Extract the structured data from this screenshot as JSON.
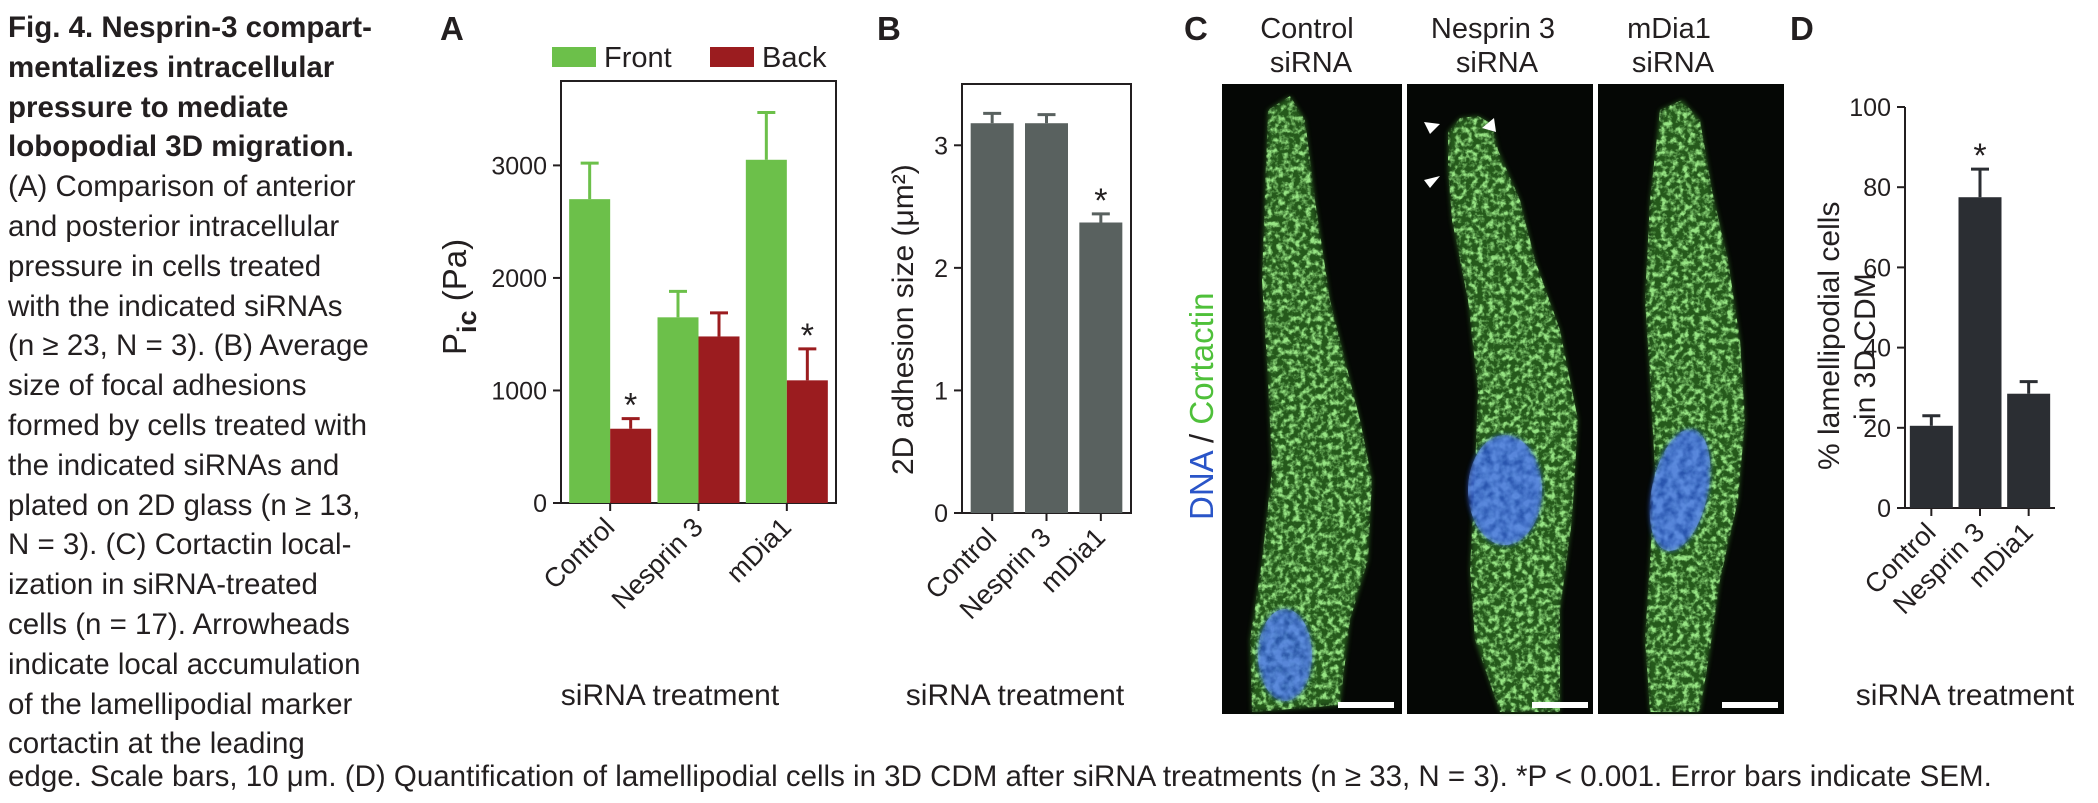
{
  "caption": {
    "title": "Fig. 4. Nesprin-3 compartmentalizes intracellular pressure to mediate lobopodial 3D migration.",
    "title_lines": [
      "Fig. 4. Nesprin-3 compart-",
      "mentalizes intracellular",
      "pressure to mediate",
      "lobopodial 3D migration."
    ],
    "body_lines": [
      "(A) Comparison of anterior",
      "and posterior intracellular",
      "pressure in cells treated",
      "with the indicated siRNAs",
      "(n ≥  23, N = 3). (B) Average",
      "size of focal adhesions",
      "formed by cells treated with",
      "the indicated siRNAs and",
      "plated on 2D glass (n ≥ 13,",
      "N = 3). (C) Cortactin local-",
      "ization in siRNA-treated",
      "cells (n = 17). Arrowheads",
      "indicate local accumulation",
      "of the lamellipodial marker",
      "cortactin at the leading"
    ],
    "bottom_line": "edge. Scale bars, 10 μm. (D) Quantification of lamellipodial cells in 3D CDM after siRNA treatments (n ≥ 33, N = 3). *P < 0.001. Error bars indicate SEM."
  },
  "panels": {
    "A": "A",
    "B": "B",
    "C": "C",
    "D": "D"
  },
  "chart_data": [
    {
      "panel": "A",
      "type": "bar",
      "categories": [
        "Control",
        "Nesprin 3",
        "mDia1"
      ],
      "series": [
        {
          "name": "Front",
          "color": "#6cc04a",
          "values": [
            2700,
            1650,
            3050
          ],
          "errors": [
            320,
            230,
            420
          ]
        },
        {
          "name": "Back",
          "color": "#9b1c1f",
          "values": [
            660,
            1480,
            1090
          ],
          "errors": [
            90,
            210,
            280
          ]
        }
      ],
      "significance": [
        {
          "category": "Control",
          "series": "Back",
          "label": "*"
        },
        {
          "category": "mDia1",
          "series": "Back",
          "label": "*"
        }
      ],
      "yticks": [
        0,
        1000,
        2000,
        3000
      ],
      "ylim": [
        0,
        3750
      ],
      "ylabel_main": "P",
      "ylabel_sub": "ic",
      "ylabel_unit": "(Pa)",
      "xlabel": "siRNA treatment",
      "legend": "top"
    },
    {
      "panel": "B",
      "type": "bar",
      "categories": [
        "Control",
        "Nesprin 3",
        "mDia1"
      ],
      "series": [
        {
          "color": "#59615f",
          "values": [
            3.18,
            3.18,
            2.37
          ],
          "errors": [
            0.08,
            0.07,
            0.07
          ]
        }
      ],
      "significance": [
        {
          "category": "mDia1",
          "label": "*"
        }
      ],
      "yticks": [
        0,
        1,
        2,
        3
      ],
      "ylim": [
        0,
        3.5
      ],
      "ylabel": "2D adhesion size (μm²)",
      "xlabel": "siRNA treatment"
    },
    {
      "panel": "D",
      "type": "bar",
      "categories": [
        "Control",
        "Nesprin 3",
        "mDia1"
      ],
      "series": [
        {
          "color": "#2b2e33",
          "values": [
            20.5,
            77.5,
            28.5
          ],
          "errors": [
            2.5,
            7,
            3
          ]
        }
      ],
      "significance": [
        {
          "category": "Nesprin 3",
          "label": "*"
        }
      ],
      "yticks": [
        0,
        20,
        40,
        60,
        80,
        100
      ],
      "ylim": [
        0,
        100
      ],
      "ylabel_lines": [
        "% lamellipodial cells",
        "in 3D CDM"
      ],
      "xlabel": "siRNA treatment"
    }
  ],
  "micrographs": {
    "stain_label_dna": "DNA",
    "stain_label_sep": " / ",
    "stain_label_cortactin": "Cortactin",
    "dna_color": "#2a55c8",
    "cortactin_color": "#4fc03a",
    "columns": [
      {
        "title_lines": [
          "Control",
          "siRNA"
        ],
        "icon": "cell-control"
      },
      {
        "title_lines": [
          "Nesprin 3",
          "siRNA"
        ],
        "icon": "cell-nesprin3"
      },
      {
        "title_lines": [
          "mDia1",
          "siRNA"
        ],
        "icon": "cell-mdia1"
      }
    ]
  }
}
